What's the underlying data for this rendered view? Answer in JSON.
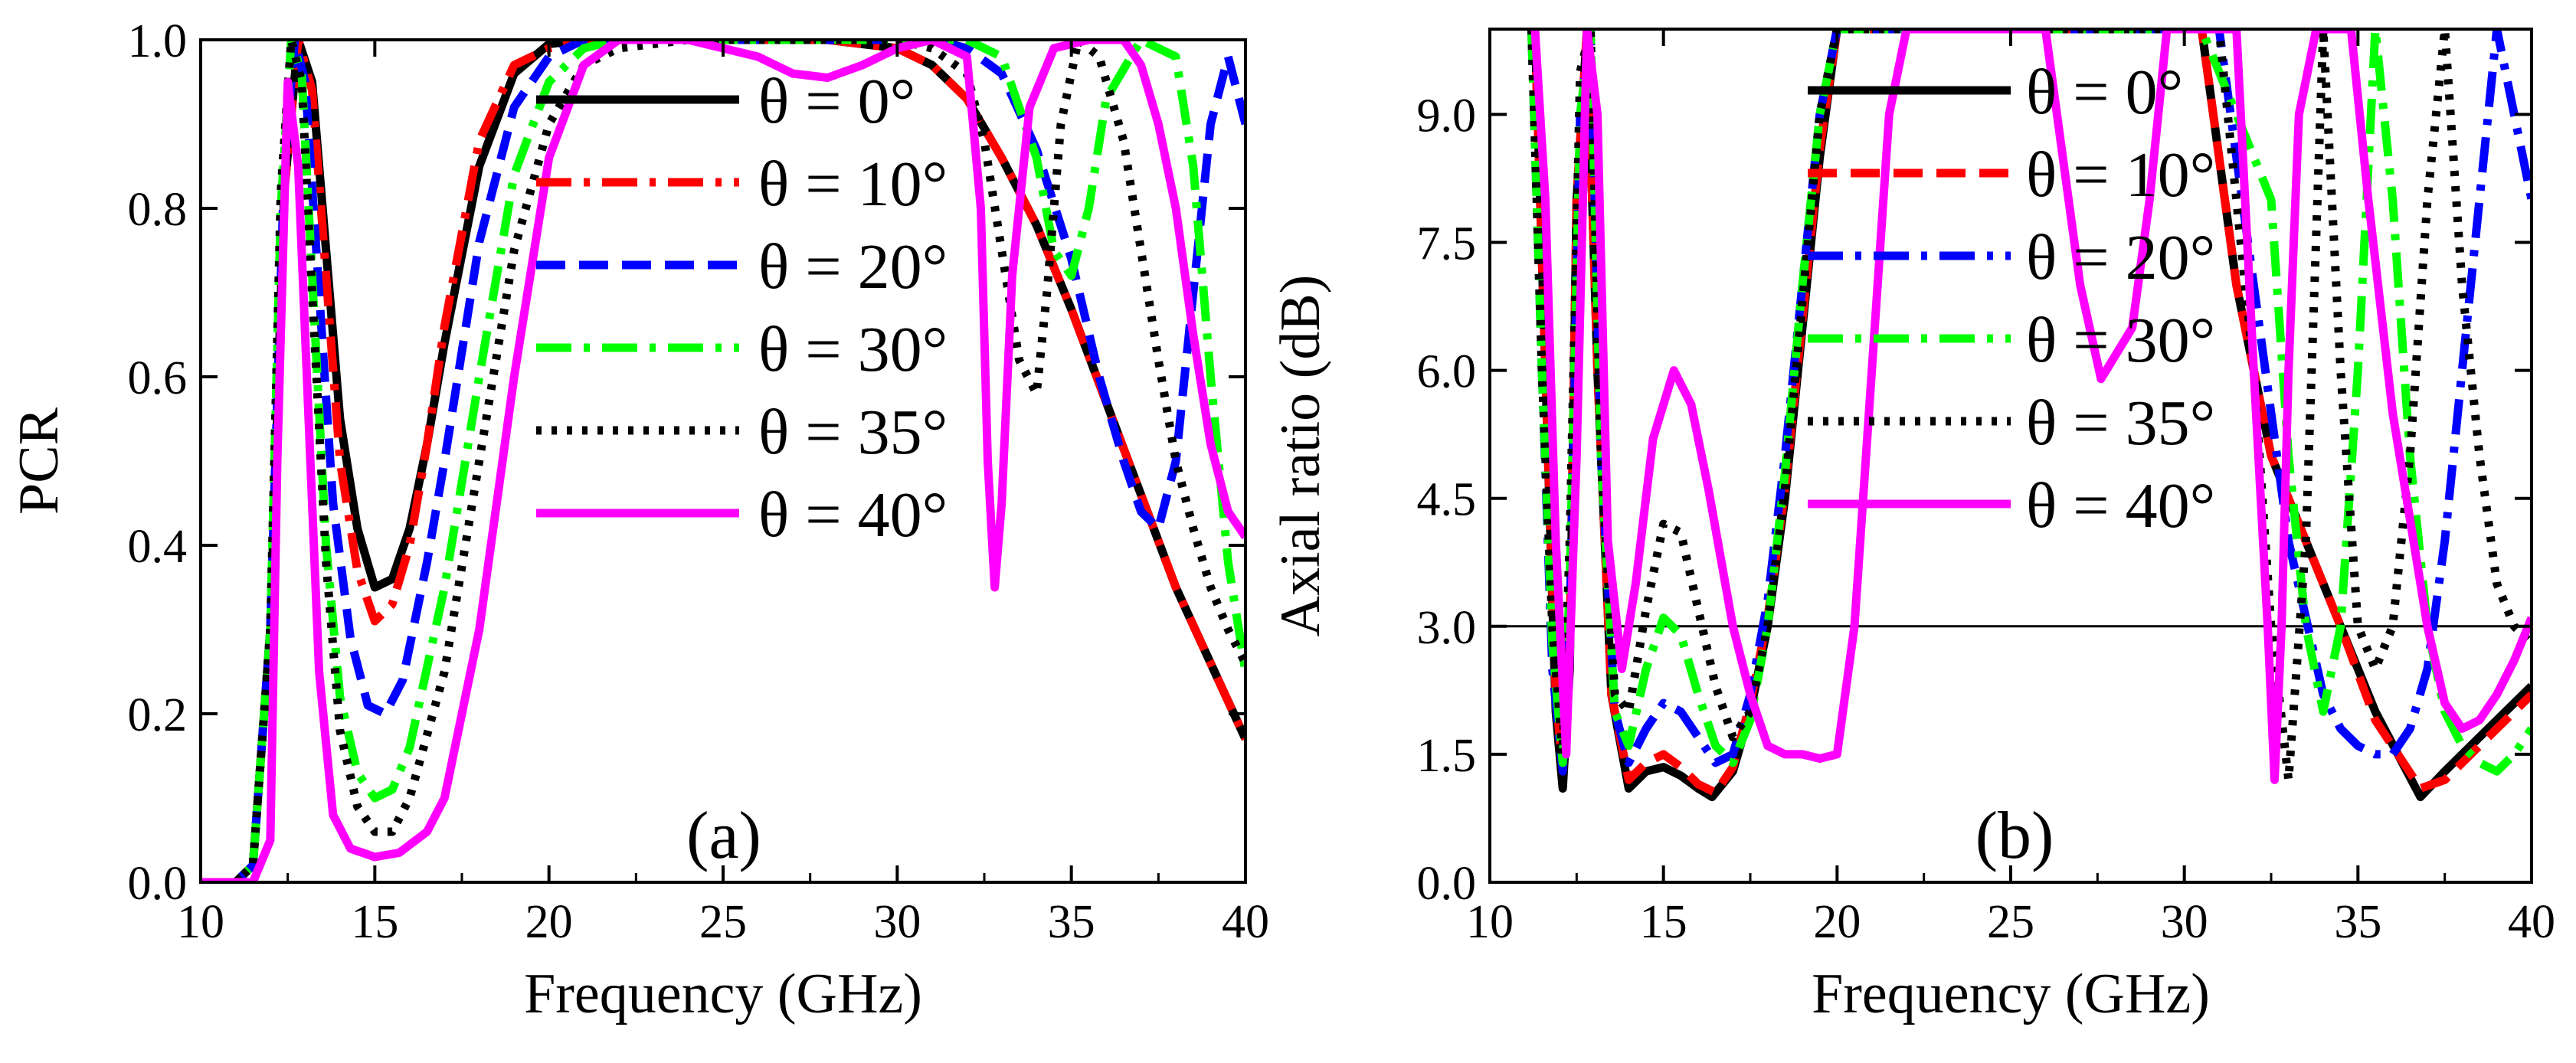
{
  "chart_data": [
    {
      "type": "line",
      "panel_label": "(a)",
      "xlabel": "Frequency (GHz)",
      "ylabel": "PCR",
      "xlim": [
        10,
        40
      ],
      "ylim": [
        0,
        1
      ],
      "xticks": [
        "10",
        "15",
        "20",
        "25",
        "30",
        "35",
        "40"
      ],
      "yticks": [
        "0.0",
        "0.2",
        "0.4",
        "0.6",
        "0.8",
        "1.0"
      ],
      "legend_position": "top-right",
      "series": [
        {
          "name": "θ = 0°",
          "color": "#000000",
          "style": "solid",
          "x": [
            10,
            11,
            11.5,
            12,
            12.4,
            12.8,
            13.2,
            13.6,
            14,
            14.5,
            15,
            15.5,
            16,
            16.5,
            17,
            18,
            19,
            20,
            21,
            22,
            24,
            26,
            28,
            30,
            31,
            32,
            33,
            34,
            35,
            36,
            37,
            38,
            39,
            40
          ],
          "y": [
            0,
            0,
            0.02,
            0.3,
            0.82,
            1.0,
            0.95,
            0.75,
            0.55,
            0.42,
            0.35,
            0.36,
            0.42,
            0.52,
            0.64,
            0.85,
            0.96,
            0.995,
            1,
            1,
            1,
            1,
            1,
            0.99,
            0.97,
            0.93,
            0.86,
            0.78,
            0.68,
            0.57,
            0.46,
            0.35,
            0.26,
            0.17
          ]
        },
        {
          "name": "θ = 10°",
          "color": "#ff0000",
          "style": "dashdot",
          "x": [
            10,
            11,
            11.5,
            12,
            12.4,
            12.8,
            13.2,
            13.6,
            14,
            14.5,
            15,
            15.5,
            16,
            16.5,
            17,
            18,
            19,
            20,
            21,
            22,
            24,
            26,
            28,
            30,
            31,
            32,
            33,
            34,
            35,
            36,
            37,
            38,
            39,
            40
          ],
          "y": [
            0,
            0,
            0.02,
            0.3,
            0.82,
            1.0,
            0.94,
            0.72,
            0.5,
            0.37,
            0.31,
            0.33,
            0.4,
            0.52,
            0.66,
            0.88,
            0.97,
            0.99,
            1,
            1,
            1,
            1,
            1,
            0.99,
            0.97,
            0.93,
            0.86,
            0.78,
            0.68,
            0.57,
            0.46,
            0.35,
            0.26,
            0.17
          ]
        },
        {
          "name": "θ = 20°",
          "color": "#0000ff",
          "style": "dash",
          "x": [
            10,
            11,
            11.5,
            12,
            12.4,
            12.7,
            13,
            13.4,
            13.8,
            14.3,
            14.8,
            15.3,
            15.8,
            16.5,
            17,
            18,
            19,
            20,
            21,
            22,
            24,
            26,
            28,
            30,
            31,
            32,
            33,
            34,
            35,
            35.8,
            36.5,
            37,
            37.5,
            38,
            38.5,
            39,
            39.5,
            40
          ],
          "y": [
            0,
            0,
            0.02,
            0.3,
            0.85,
            1.0,
            0.95,
            0.7,
            0.45,
            0.29,
            0.21,
            0.2,
            0.24,
            0.38,
            0.5,
            0.76,
            0.92,
            0.98,
            1,
            1,
            1,
            1,
            1,
            1,
            1,
            0.99,
            0.96,
            0.87,
            0.74,
            0.6,
            0.5,
            0.44,
            0.42,
            0.5,
            0.7,
            0.9,
            0.98,
            0.9
          ]
        },
        {
          "name": "θ = 30°",
          "color": "#00ff00",
          "style": "dashdot",
          "x": [
            10,
            11,
            11.5,
            12,
            12.3,
            12.6,
            12.9,
            13.2,
            13.6,
            14,
            14.5,
            15,
            15.5,
            16,
            17,
            18,
            19,
            20,
            21,
            22,
            24,
            26,
            28,
            30,
            31,
            32,
            33,
            34,
            34.5,
            35,
            35.5,
            36,
            37,
            38,
            38.5,
            39,
            39.5,
            40
          ],
          "y": [
            0,
            0,
            0.02,
            0.3,
            0.8,
            1.0,
            0.96,
            0.72,
            0.4,
            0.22,
            0.13,
            0.1,
            0.11,
            0.16,
            0.35,
            0.6,
            0.84,
            0.95,
            0.99,
            1,
            1,
            1,
            1,
            1,
            1,
            1,
            0.98,
            0.86,
            0.75,
            0.72,
            0.8,
            0.93,
            1,
            0.98,
            0.85,
            0.6,
            0.38,
            0.25
          ]
        },
        {
          "name": "θ = 35°",
          "color": "#000000",
          "style": "dotted",
          "x": [
            10,
            11,
            11.5,
            12,
            12.3,
            12.6,
            12.9,
            13.2,
            13.6,
            14,
            14.5,
            15,
            15.5,
            16,
            17,
            18,
            19,
            20,
            21,
            22,
            24,
            26,
            28,
            30,
            31,
            32,
            32.5,
            33,
            33.5,
            34,
            34.3,
            34.7,
            35.2,
            35.8,
            36.5,
            37,
            37.5,
            38,
            38.5,
            39,
            39.5,
            40
          ],
          "y": [
            0,
            0,
            0.02,
            0.3,
            0.82,
            1.0,
            0.95,
            0.7,
            0.38,
            0.18,
            0.09,
            0.06,
            0.06,
            0.1,
            0.25,
            0.5,
            0.75,
            0.9,
            0.97,
            0.99,
            1,
            1,
            1,
            1,
            0.99,
            0.96,
            0.88,
            0.75,
            0.62,
            0.58,
            0.7,
            0.9,
            1,
            0.98,
            0.88,
            0.75,
            0.62,
            0.5,
            0.42,
            0.35,
            0.3,
            0.26
          ]
        },
        {
          "name": "θ = 40°",
          "color": "#ff00ff",
          "style": "solid",
          "x": [
            10,
            11,
            11.5,
            12,
            12.2,
            12.5,
            12.8,
            13.1,
            13.4,
            13.8,
            14.3,
            15,
            15.7,
            16.5,
            17,
            18,
            19,
            20,
            21,
            22,
            24,
            26,
            27,
            28,
            29,
            30,
            31,
            32,
            32.4,
            32.6,
            32.8,
            33,
            33.3,
            33.8,
            34.5,
            35.5,
            36.5,
            37,
            37.5,
            38,
            38.5,
            39,
            39.5,
            40
          ],
          "y": [
            0,
            0,
            0,
            0.05,
            0.5,
            0.95,
            0.85,
            0.55,
            0.25,
            0.08,
            0.04,
            0.03,
            0.035,
            0.06,
            0.1,
            0.3,
            0.6,
            0.86,
            0.97,
            1,
            1,
            0.98,
            0.96,
            0.955,
            0.97,
            0.99,
            1,
            0.98,
            0.8,
            0.5,
            0.35,
            0.45,
            0.72,
            0.92,
            0.99,
            1,
            1,
            0.97,
            0.9,
            0.8,
            0.65,
            0.52,
            0.44,
            0.41
          ]
        }
      ]
    },
    {
      "type": "line",
      "panel_label": "(b)",
      "xlabel": "Frequency (GHz)",
      "ylabel": "Axial ratio (dB)",
      "xlim": [
        10,
        40
      ],
      "ylim": [
        0,
        10
      ],
      "xticks": [
        "10",
        "15",
        "20",
        "25",
        "30",
        "35",
        "40"
      ],
      "yticks": [
        "0.0",
        "1.5",
        "3.0",
        "4.5",
        "6.0",
        "7.5",
        "9.0"
      ],
      "reference_line_y": 3.0,
      "legend_position": "top-center",
      "series": [
        {
          "name": "θ = 0°",
          "color": "#000000",
          "style": "solid",
          "x": [
            11.3,
            11.6,
            11.9,
            12.1,
            12.3,
            12.5,
            12.8,
            13.1,
            13.5,
            14,
            14.5,
            15,
            15.5,
            16,
            16.4,
            17,
            17.5,
            18,
            18.5,
            19,
            19.5,
            20,
            30.5,
            31.5,
            32.5,
            33.5,
            34.5,
            35.5,
            36.8,
            37.5,
            38.5,
            39.5,
            40
          ],
          "y": [
            10,
            6,
            2,
            1.1,
            2.5,
            8,
            10,
            6,
            2.2,
            1.1,
            1.3,
            1.35,
            1.25,
            1.1,
            1,
            1.3,
            2,
            3,
            4.5,
            6.5,
            8.5,
            10,
            10,
            7,
            5,
            4,
            3,
            2,
            1,
            1.3,
            1.7,
            2.1,
            2.3
          ]
        },
        {
          "name": "θ = 10°",
          "color": "#ff0000",
          "style": "dash",
          "x": [
            11.3,
            11.6,
            11.9,
            12.1,
            12.3,
            12.5,
            12.8,
            13.1,
            13.5,
            14,
            14.5,
            15,
            15.5,
            16,
            16.5,
            17,
            17.5,
            18,
            18.5,
            19,
            19.5,
            20,
            30.5,
            31.5,
            32.5,
            33.5,
            34.5,
            35.5,
            36.8,
            37.5,
            38.5,
            39.5,
            40
          ],
          "y": [
            10,
            6,
            2.2,
            1.3,
            2.8,
            8,
            10,
            6,
            2.2,
            1.2,
            1.4,
            1.5,
            1.35,
            1.15,
            1.05,
            1.35,
            2.1,
            3.1,
            4.6,
            6.6,
            8.6,
            10,
            10,
            7,
            5,
            4,
            3,
            1.9,
            1.1,
            1.2,
            1.6,
            2,
            2.2
          ]
        },
        {
          "name": "θ = 20°",
          "color": "#0000ff",
          "style": "dashdot",
          "x": [
            11.2,
            11.5,
            11.8,
            12.1,
            12.3,
            12.6,
            12.9,
            13.2,
            13.6,
            14,
            14.5,
            15,
            15.5,
            16,
            16.5,
            17,
            17.5,
            18,
            18.5,
            19,
            19.5,
            20,
            31,
            32,
            33,
            34,
            34.5,
            35,
            35.5,
            36,
            36.5,
            37,
            37.5,
            38,
            38.5,
            39,
            39.5,
            40
          ],
          "y": [
            10,
            6,
            2.5,
            1.3,
            3,
            9,
            10,
            5,
            2,
            1.4,
            1.8,
            2.1,
            2,
            1.7,
            1.4,
            1.5,
            2.2,
            3.3,
            5,
            7,
            9,
            10,
            10,
            7,
            4,
            2.2,
            1.8,
            1.6,
            1.5,
            1.5,
            1.8,
            2.5,
            4,
            6,
            8,
            10,
            9,
            8
          ]
        },
        {
          "name": "θ = 30°",
          "color": "#00ff00",
          "style": "dashdot",
          "x": [
            11.2,
            11.5,
            11.8,
            12.1,
            12.3,
            12.6,
            12.9,
            13.2,
            13.6,
            14,
            14.5,
            15,
            15.5,
            16,
            16.5,
            17,
            17.5,
            18,
            18.5,
            19,
            19.5,
            20,
            30.5,
            31.5,
            32.5,
            33,
            33.5,
            34,
            34.5,
            35,
            35.5,
            36,
            36.5,
            37,
            37.5,
            38,
            38.5,
            39,
            39.5,
            40
          ],
          "y": [
            10,
            6,
            2.8,
            1.4,
            3.5,
            9,
            10,
            5,
            2,
            1.6,
            2.5,
            3.1,
            2.9,
            2.2,
            1.6,
            1.4,
            1.9,
            3,
            4.8,
            7,
            9,
            10,
            10,
            9,
            8,
            5,
            3,
            2,
            3,
            6,
            10,
            8,
            5,
            3,
            2,
            1.6,
            1.4,
            1.3,
            1.5,
            1.8
          ]
        },
        {
          "name": "θ = 35°",
          "color": "#000000",
          "style": "dotted",
          "x": [
            11.2,
            11.5,
            11.8,
            12.1,
            12.3,
            12.6,
            12.9,
            13.2,
            13.6,
            14,
            14.5,
            15,
            15.5,
            16,
            16.5,
            17,
            17.5,
            18,
            18.5,
            19,
            19.5,
            20,
            31,
            32,
            32.5,
            33,
            33.5,
            34,
            34.5,
            35,
            35.5,
            36,
            36.5,
            37,
            37.5,
            38,
            38.5,
            39,
            39.5,
            40
          ],
          "y": [
            10,
            6,
            3,
            1.5,
            4,
            9.5,
            10,
            5,
            2.2,
            2,
            3.2,
            4.2,
            4.1,
            3.2,
            2.3,
            1.7,
            2,
            3,
            4.6,
            6.8,
            9,
            10,
            10,
            6,
            3,
            1.2,
            4,
            10,
            6,
            3,
            2.5,
            3,
            5,
            8,
            10,
            7,
            5,
            3.5,
            3,
            2.8
          ]
        },
        {
          "name": "θ = 40°",
          "color": "#ff00ff",
          "style": "solid",
          "x": [
            11.3,
            11.6,
            11.9,
            12.2,
            12.5,
            12.8,
            13.1,
            13.4,
            13.8,
            14.2,
            14.7,
            15.3,
            15.8,
            16.3,
            17,
            17.5,
            18,
            18.5,
            19,
            19.5,
            20,
            20.5,
            21,
            21.5,
            22,
            23,
            24,
            25,
            26,
            27,
            27.6,
            28.5,
            29,
            29.5,
            30,
            30.5,
            31,
            31.5,
            32,
            32.4,
            32.6,
            32.8,
            33,
            33.3,
            33.8,
            34.3,
            34.8,
            35.3,
            36,
            37,
            37.5,
            38,
            38.5,
            39,
            39.5,
            40
          ],
          "y": [
            10,
            8,
            4,
            1.5,
            5,
            10,
            9,
            4,
            2.5,
            3.5,
            5.2,
            6,
            5.6,
            4.6,
            3,
            2.2,
            1.6,
            1.5,
            1.5,
            1.45,
            1.5,
            3,
            6,
            9,
            10,
            10,
            10,
            10,
            10,
            7,
            5.9,
            6.5,
            8,
            10,
            10,
            10,
            10,
            10,
            6,
            3,
            1.2,
            3,
            6,
            9,
            10,
            10,
            10,
            8,
            5.5,
            3,
            2.1,
            1.8,
            1.9,
            2.2,
            2.6,
            3.1
          ]
        }
      ]
    }
  ]
}
